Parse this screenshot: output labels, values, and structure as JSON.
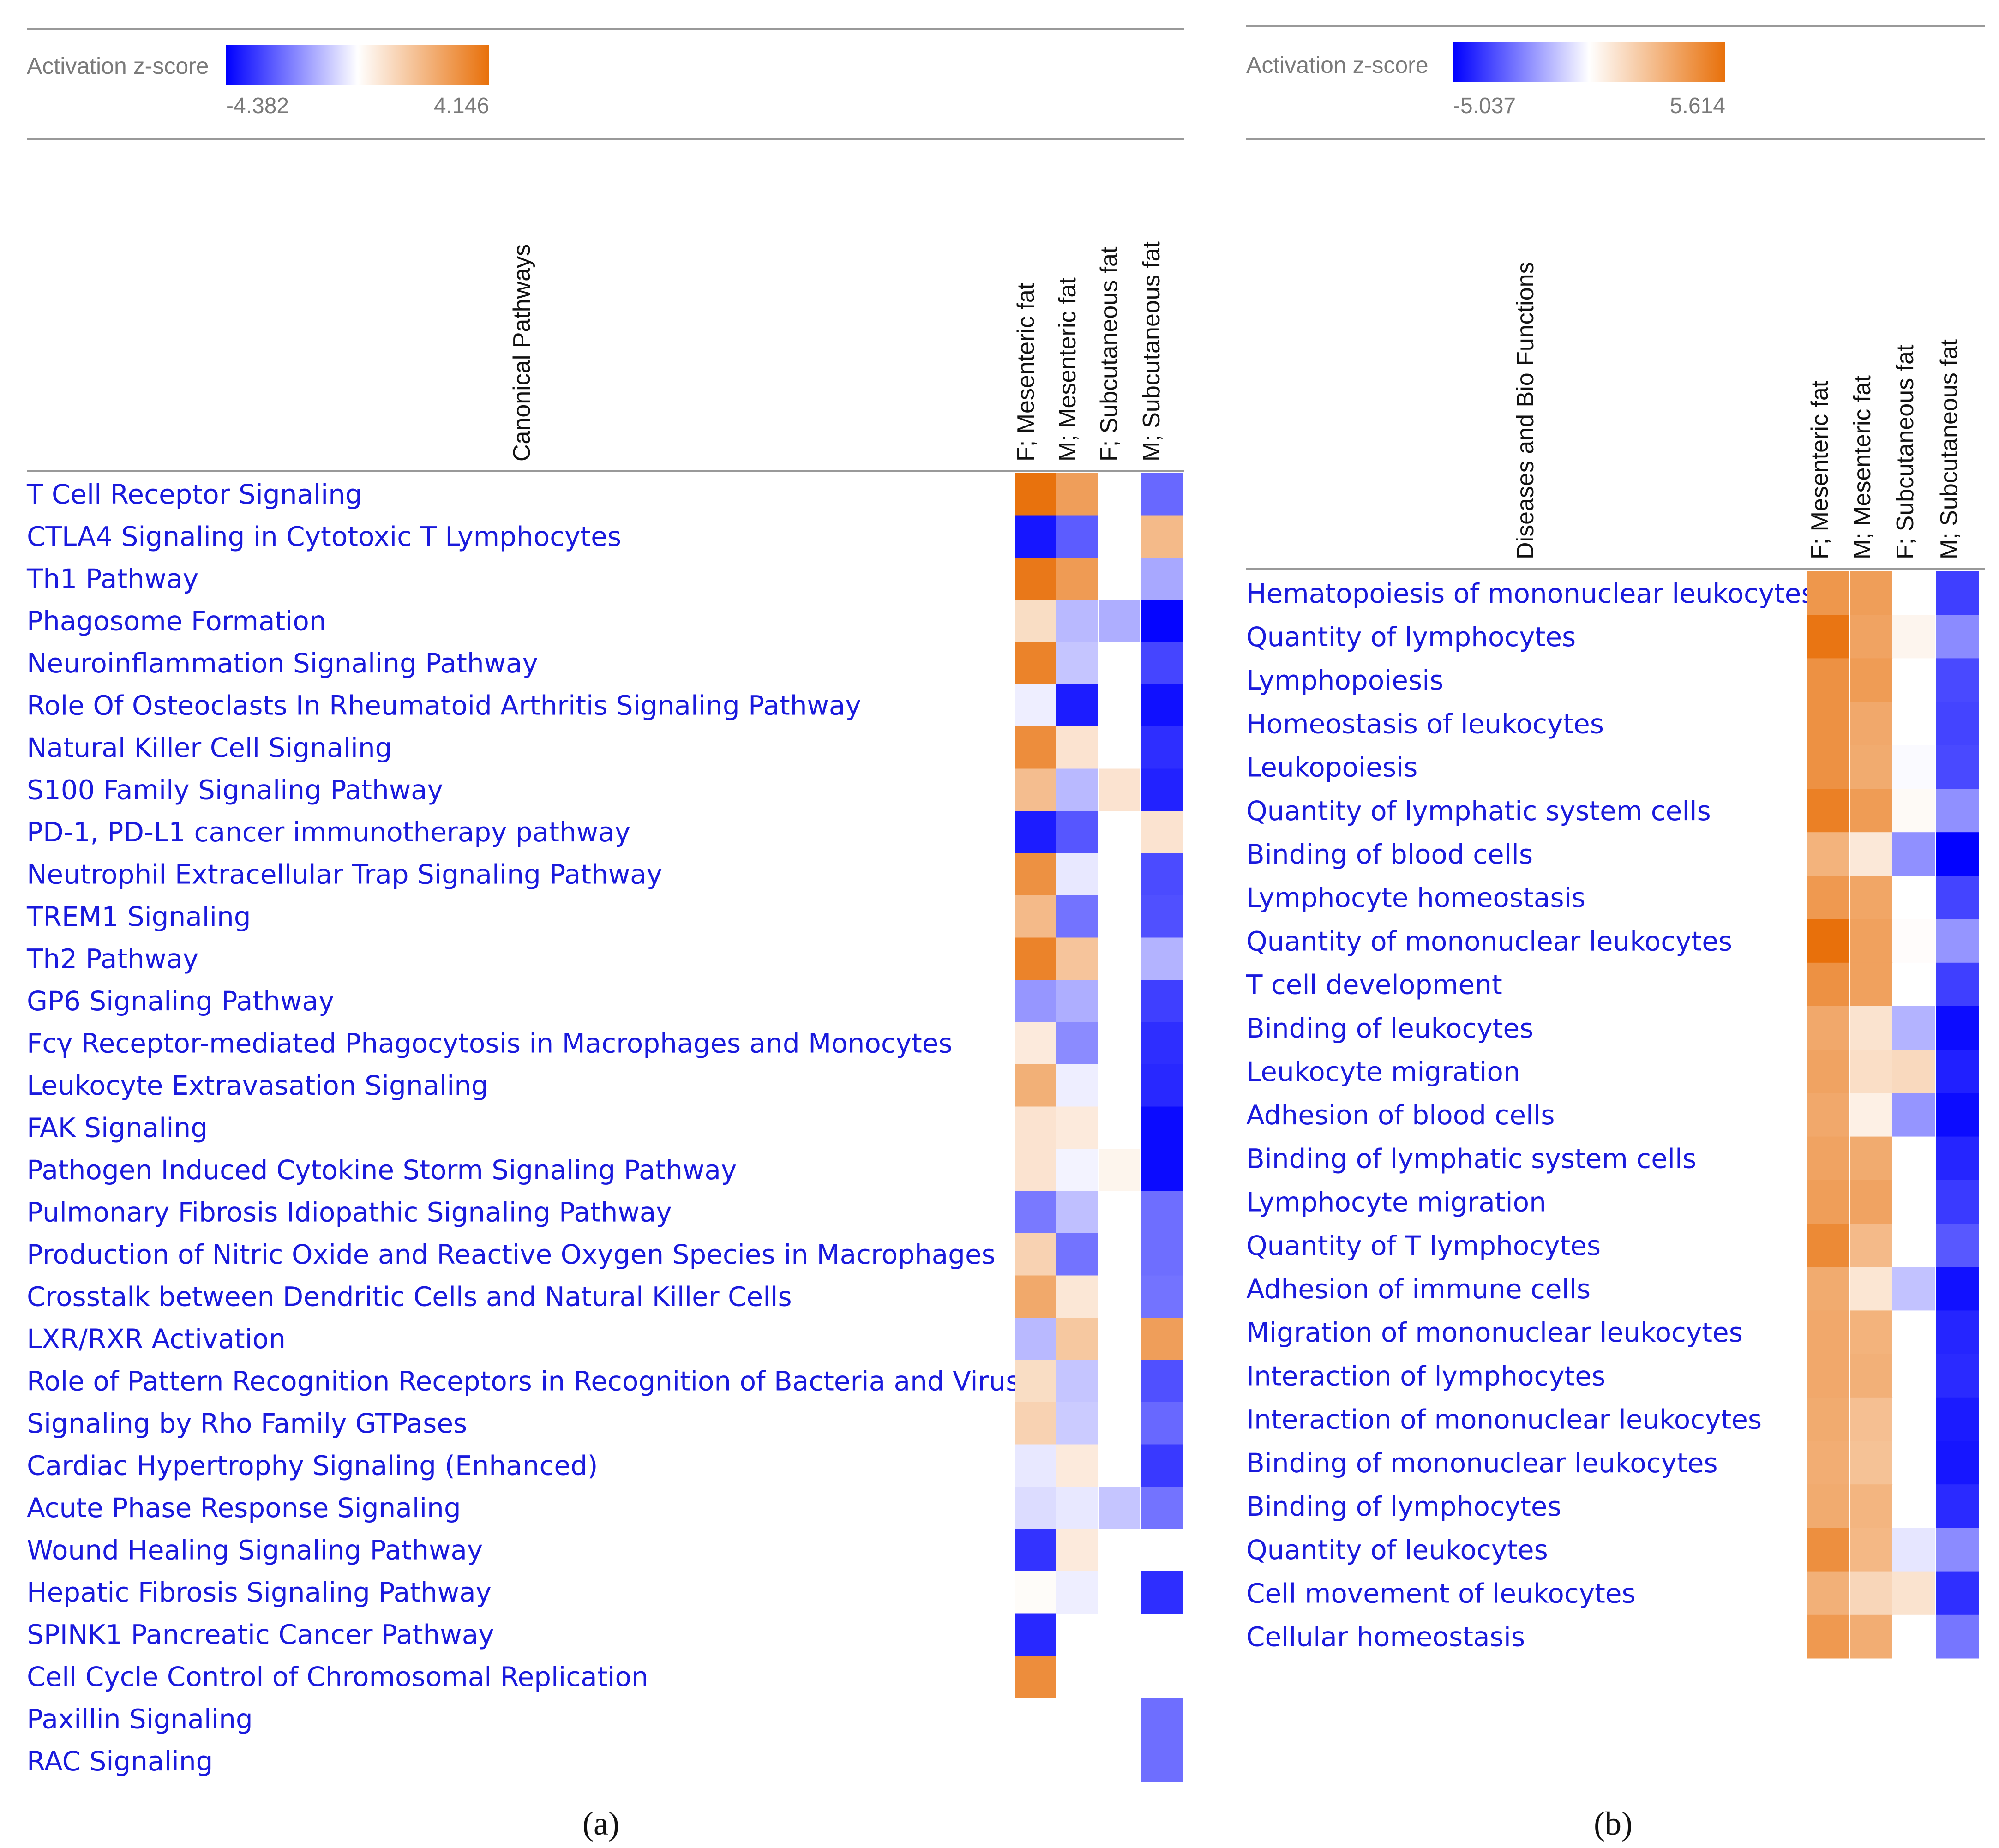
{
  "colors": {
    "negative": "#0000ff",
    "neutral": "#ffffff",
    "positive": "#e8700a",
    "label": "#1a1adc",
    "rule": "#999999",
    "legend_text": "#7a7a7a"
  },
  "chart_data": [
    {
      "type": "heatmap",
      "panel_label": "(a)",
      "legend": {
        "title": "Activation z-score",
        "min": -4.382,
        "max": 4.146,
        "min_label": "-4.382",
        "max_label": "4.146"
      },
      "row_header": "Canonical Pathways",
      "columns": [
        "F; Mesenteric fat",
        "M; Mesenteric fat",
        "F; Subcutaneous fat",
        "M; Subcutaneous fat"
      ],
      "rows": [
        "T Cell Receptor Signaling",
        "CTLA4 Signaling in Cytotoxic T Lymphocytes",
        "Th1 Pathway",
        "Phagosome Formation",
        "Neuroinflammation Signaling Pathway",
        "Role Of Osteoclasts In Rheumatoid Arthritis Signaling Pathway",
        "Natural Killer Cell Signaling",
        "S100 Family Signaling Pathway",
        "PD-1, PD-L1 cancer immunotherapy pathway",
        "Neutrophil Extracellular Trap Signaling Pathway",
        "TREM1 Signaling",
        "Th2 Pathway",
        "GP6 Signaling Pathway",
        "Fcγ Receptor-mediated Phagocytosis in Macrophages and Monocytes",
        "Leukocyte Extravasation Signaling",
        "FAK Signaling",
        "Pathogen Induced Cytokine Storm Signaling Pathway",
        "Pulmonary Fibrosis Idiopathic Signaling Pathway",
        "Production of Nitric Oxide and Reactive Oxygen Species in Macrophages",
        "Crosstalk between Dendritic Cells and Natural Killer Cells",
        "LXR/RXR Activation",
        "Role of Pattern Recognition Receptors in Recognition of Bacteria and Viruses",
        "Signaling by Rho Family GTPases",
        "Cardiac Hypertrophy Signaling (Enhanced)",
        "Acute Phase Response Signaling",
        "Wound Healing Signaling Pathway",
        "Hepatic Fibrosis Signaling Pathway",
        "SPINK1 Pancreatic Cancer Pathway",
        "Cell Cycle Control of Chromosomal Replication",
        "Paxillin Signaling",
        "RAC Signaling"
      ],
      "values": [
        [
          4.1,
          2.8,
          null,
          -2.6
        ],
        [
          -4.0,
          -2.8,
          null,
          2.0
        ],
        [
          3.9,
          2.9,
          null,
          -1.5
        ],
        [
          1.0,
          -1.2,
          -1.4,
          -4.3
        ],
        [
          3.6,
          -1.0,
          null,
          -3.2
        ],
        [
          -0.3,
          -3.9,
          null,
          -4.1
        ],
        [
          3.3,
          0.8,
          null,
          -3.6
        ],
        [
          1.9,
          -1.2,
          0.8,
          -3.8
        ],
        [
          -3.9,
          -2.9,
          null,
          0.8
        ],
        [
          3.2,
          -0.4,
          null,
          -3.1
        ],
        [
          2.0,
          -2.4,
          null,
          -3.0
        ],
        [
          3.6,
          1.7,
          null,
          -1.3
        ],
        [
          -1.8,
          -1.4,
          null,
          -3.3
        ],
        [
          0.6,
          -2.0,
          null,
          -3.6
        ],
        [
          2.3,
          -0.3,
          null,
          -3.7
        ],
        [
          0.8,
          0.6,
          null,
          -4.2
        ],
        [
          0.8,
          -0.2,
          0.3,
          -4.2
        ],
        [
          -2.3,
          -1.1,
          null,
          -2.5
        ],
        [
          1.3,
          -2.4,
          null,
          -2.5
        ],
        [
          2.5,
          0.7,
          null,
          -2.4
        ],
        [
          -1.2,
          1.6,
          null,
          2.8
        ],
        [
          1.0,
          -1.0,
          null,
          -3.0
        ],
        [
          1.3,
          -0.9,
          null,
          -2.6
        ],
        [
          -0.4,
          0.6,
          null,
          -3.4
        ],
        [
          -0.6,
          -0.4,
          -1.0,
          -2.4
        ],
        [
          -3.5,
          0.6,
          null,
          null
        ],
        [
          0.1,
          -0.3,
          null,
          -3.6
        ],
        [
          -3.7,
          null,
          null,
          null
        ],
        [
          3.3,
          null,
          null,
          null
        ],
        [
          null,
          null,
          null,
          -2.5
        ],
        [
          null,
          null,
          null,
          -2.5
        ]
      ]
    },
    {
      "type": "heatmap",
      "panel_label": "(b)",
      "legend": {
        "title": "Activation z-score",
        "min": -5.037,
        "max": 5.614,
        "min_label": "-5.037",
        "max_label": "5.614"
      },
      "row_header": "Diseases and Bio Functions",
      "columns": [
        "F; Mesenteric fat",
        "M; Mesenteric fat",
        "F; Subcutaneous fat",
        "M; Subcutaneous fat"
      ],
      "rows": [
        "Hematopoiesis of mononuclear leukocytes",
        "Quantity of lymphocytes",
        "Lymphopoiesis",
        "Homeostasis of leukocytes",
        "Leukopoiesis",
        "Quantity of lymphatic system cells",
        "Binding of blood cells",
        "Lymphocyte homeostasis",
        "Quantity of mononuclear leukocytes",
        "T cell development",
        "Binding of leukocytes",
        "Leukocyte migration",
        "Adhesion of blood cells",
        "Binding of lymphatic system cells",
        "Lymphocyte migration",
        "Quantity of T lymphocytes",
        "Adhesion of immune cells",
        "Migration of mononuclear leukocytes",
        "Interaction of lymphocytes",
        "Interaction of mononuclear leukocytes",
        "Binding of mononuclear leukocytes",
        "Binding of lymphocytes",
        "Quantity of leukocytes",
        "Cell movement of leukocytes",
        "Cellular homeostasis"
      ],
      "values": [
        [
          4.1,
          3.8,
          0.0,
          -3.8
        ],
        [
          5.4,
          3.6,
          0.4,
          -2.3
        ],
        [
          4.3,
          3.9,
          0.0,
          -3.6
        ],
        [
          4.3,
          3.4,
          0.0,
          -3.7
        ],
        [
          4.3,
          3.3,
          -0.1,
          -3.6
        ],
        [
          5.0,
          3.9,
          0.2,
          -2.2
        ],
        [
          3.0,
          0.9,
          -2.2,
          -5.0
        ],
        [
          4.0,
          3.5,
          0.0,
          -3.7
        ],
        [
          5.6,
          3.7,
          0.1,
          -2.1
        ],
        [
          4.3,
          3.7,
          0.0,
          -3.8
        ],
        [
          3.4,
          1.1,
          -1.5,
          -4.8
        ],
        [
          3.6,
          1.3,
          1.5,
          -4.4
        ],
        [
          3.4,
          0.6,
          -2.1,
          -4.8
        ],
        [
          3.6,
          3.3,
          0.0,
          -4.3
        ],
        [
          3.8,
          3.6,
          0.0,
          -3.9
        ],
        [
          4.6,
          2.7,
          0.0,
          -3.3
        ],
        [
          3.3,
          1.0,
          -1.2,
          -4.7
        ],
        [
          3.4,
          3.0,
          0.0,
          -4.3
        ],
        [
          3.4,
          3.1,
          0.0,
          -4.2
        ],
        [
          3.3,
          2.5,
          0.0,
          -4.5
        ],
        [
          3.2,
          2.4,
          0.0,
          -4.6
        ],
        [
          3.3,
          2.9,
          0.0,
          -4.2
        ],
        [
          4.4,
          2.8,
          -0.5,
          -2.3
        ],
        [
          3.1,
          1.6,
          1.1,
          -4.1
        ],
        [
          4.0,
          3.2,
          0.0,
          -2.7
        ]
      ]
    }
  ]
}
